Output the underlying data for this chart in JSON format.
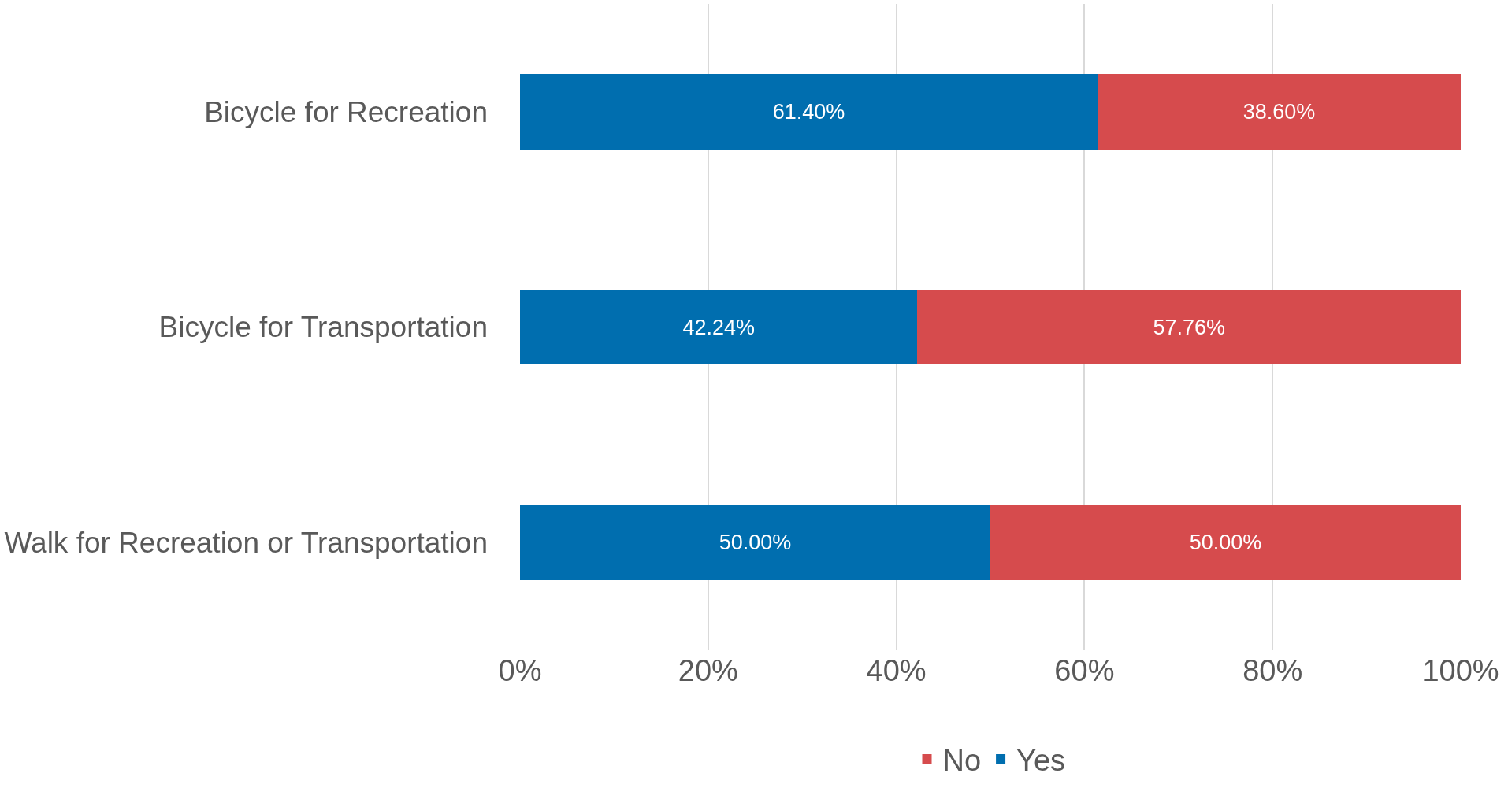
{
  "chart_data": {
    "type": "bar",
    "orientation": "horizontal",
    "stacked": true,
    "categories": [
      "Bicycle for Recreation",
      "Bicycle for Transportation",
      "Walk for Recreation or Transportation"
    ],
    "series": [
      {
        "name": "Yes",
        "color": "#006eaf",
        "values": [
          61.4,
          42.24,
          50.0
        ],
        "value_labels": [
          "61.40%",
          "42.24%",
          "50.00%"
        ]
      },
      {
        "name": "No",
        "color": "#d64b4d",
        "values": [
          38.6,
          57.76,
          50.0
        ],
        "value_labels": [
          "38.60%",
          "57.76%",
          "50.00%"
        ]
      }
    ],
    "xlim": [
      0,
      100
    ],
    "xticks": [
      {
        "value": 0,
        "label": "0%"
      },
      {
        "value": 20,
        "label": "20%"
      },
      {
        "value": 40,
        "label": "40%"
      },
      {
        "value": 60,
        "label": "60%"
      },
      {
        "value": 80,
        "label": "80%"
      },
      {
        "value": 100,
        "label": "100%"
      }
    ],
    "grid": "x",
    "legend": "bottom"
  }
}
